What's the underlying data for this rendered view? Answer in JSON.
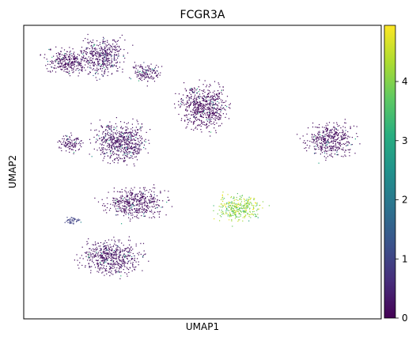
{
  "chart_data": {
    "type": "scatter",
    "title": "FCGR3A",
    "xlabel": "UMAP1",
    "ylabel": "UMAP2",
    "colorbar": {
      "colormap": "viridis",
      "range": [
        0,
        4.95
      ],
      "ticks": [
        0,
        1,
        2,
        3,
        4
      ],
      "tick_labels": [
        "0",
        "1",
        "2",
        "3",
        "4"
      ]
    },
    "axis_ticks_shown": false,
    "grid": false,
    "clusters": [
      {
        "center": [
          3.1,
          12.6
        ],
        "level": 0.15
      },
      {
        "center": [
          6.2,
          12.9
        ],
        "level": 0.25
      },
      {
        "center": [
          9.9,
          11.8
        ],
        "level": 0.2
      },
      {
        "center": [
          15.0,
          9.4
        ],
        "level": 0.1
      },
      {
        "center": [
          26.5,
          7.2
        ],
        "level": 0.15
      },
      {
        "center": [
          7.6,
          7.0
        ],
        "level": 0.2
      },
      {
        "center": [
          3.1,
          7.0
        ],
        "level": 0.2
      },
      {
        "center": [
          9.1,
          2.9
        ],
        "level": 0.15
      },
      {
        "center": [
          18.3,
          2.6
        ],
        "level": 4.1
      },
      {
        "center": [
          6.8,
          -0.8
        ],
        "level": 0.2
      },
      {
        "center": [
          3.4,
          1.7
        ],
        "level": 1.0
      }
    ]
  }
}
